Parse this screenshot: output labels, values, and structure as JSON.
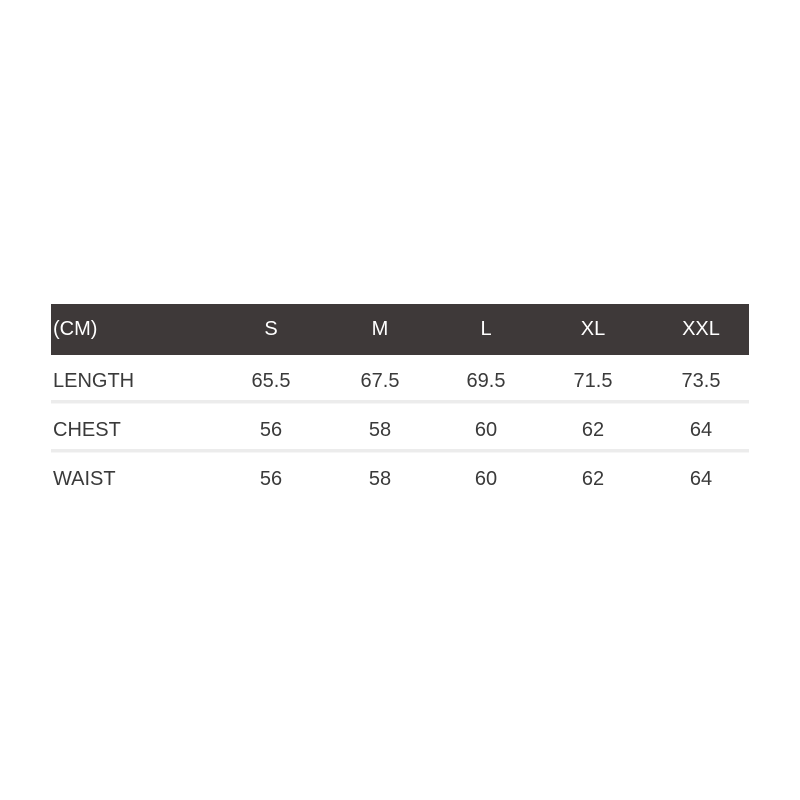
{
  "table": {
    "header": [
      "(CM)",
      "S",
      "M",
      "L",
      "XL",
      "XXL"
    ],
    "rows": [
      {
        "label": "LENGTH",
        "values": [
          "65.5",
          "67.5",
          "69.5",
          "71.5",
          "73.5"
        ]
      },
      {
        "label": "CHEST",
        "values": [
          "56",
          "58",
          "60",
          "62",
          "64"
        ]
      },
      {
        "label": "WAIST",
        "values": [
          "56",
          "58",
          "60",
          "62",
          "64"
        ]
      }
    ]
  },
  "colors": {
    "header_bg": "#3e3939",
    "header_text": "#ffffff",
    "text": "#3a3a3a"
  }
}
